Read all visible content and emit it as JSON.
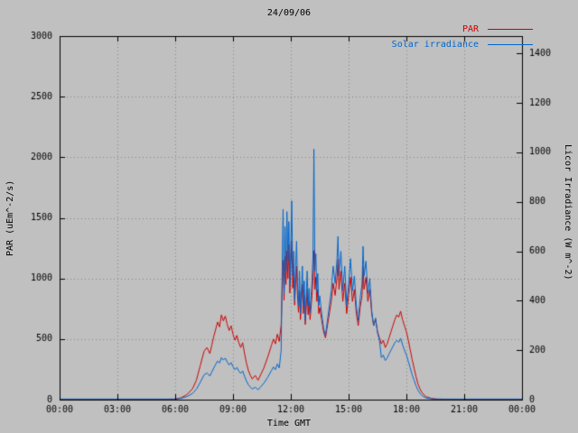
{
  "chart_data": {
    "type": "line",
    "title": "24/09/06",
    "xlabel": "Time GMT",
    "ylabel_left": "PAR (uEm^-2/s)",
    "ylabel_right": "Licor Irradiance (W m^-2)",
    "background_color": "#c0c0c0",
    "grid": true,
    "grid_color": "#888888",
    "frame_color": "#000000",
    "text_color": "#000000",
    "legend_position": "top-right",
    "x_tick_labels": [
      "00:00",
      "03:00",
      "06:00",
      "09:00",
      "12:00",
      "15:00",
      "18:00",
      "21:00",
      "00:00"
    ],
    "x_tick_hours": [
      0,
      3,
      6,
      9,
      12,
      15,
      18,
      21,
      24
    ],
    "y_left_range": [
      0,
      3000
    ],
    "y_left_ticks": [
      0,
      500,
      1000,
      1500,
      2000,
      2500,
      3000
    ],
    "y_left_tick_labels": [
      "0",
      "500",
      "1000",
      "1500",
      "2000",
      "2500",
      "3000"
    ],
    "y_right_range": [
      0,
      1470
    ],
    "y_right_ticks": [
      0,
      200,
      400,
      600,
      800,
      1000,
      1200,
      1400
    ],
    "y_right_tick_labels": [
      "0",
      "200",
      "400",
      "600",
      "800",
      "1000",
      "1200",
      "1400"
    ],
    "time_hours": [
      0,
      0.5,
      1,
      1.5,
      2,
      2.5,
      3,
      3.5,
      4,
      4.5,
      5,
      5.5,
      6,
      6.3,
      6.6,
      6.9,
      7.1,
      7.3,
      7.5,
      7.65,
      7.8,
      7.9,
      8.0,
      8.1,
      8.2,
      8.3,
      8.4,
      8.5,
      8.6,
      8.7,
      8.8,
      8.9,
      9.0,
      9.1,
      9.2,
      9.3,
      9.4,
      9.5,
      9.6,
      9.7,
      9.8,
      9.9,
      10.0,
      10.15,
      10.3,
      10.45,
      10.6,
      10.8,
      11.0,
      11.1,
      11.2,
      11.3,
      11.4,
      11.5,
      11.55,
      11.6,
      11.65,
      11.7,
      11.75,
      11.8,
      11.85,
      11.9,
      11.95,
      12.0,
      12.05,
      12.1,
      12.15,
      12.2,
      12.25,
      12.3,
      12.35,
      12.4,
      12.45,
      12.5,
      12.55,
      12.6,
      12.65,
      12.7,
      12.75,
      12.8,
      12.85,
      12.9,
      12.95,
      13.0,
      13.05,
      13.1,
      13.15,
      13.2,
      13.25,
      13.3,
      13.35,
      13.4,
      13.45,
      13.5,
      13.6,
      13.7,
      13.8,
      13.9,
      14.0,
      14.1,
      14.2,
      14.3,
      14.4,
      14.45,
      14.5,
      14.6,
      14.7,
      14.8,
      14.9,
      15.0,
      15.1,
      15.2,
      15.3,
      15.4,
      15.5,
      15.6,
      15.7,
      15.75,
      15.8,
      15.9,
      16.0,
      16.1,
      16.2,
      16.3,
      16.4,
      16.5,
      16.6,
      16.7,
      16.8,
      16.9,
      17.0,
      17.1,
      17.2,
      17.3,
      17.4,
      17.5,
      17.6,
      17.7,
      17.8,
      17.9,
      18.0,
      18.1,
      18.2,
      18.3,
      18.4,
      18.5,
      18.6,
      18.7,
      18.8,
      19.0,
      19.3,
      19.6,
      20.0,
      21.0,
      22.0,
      23.0,
      24.0
    ],
    "series": [
      {
        "name": "PAR",
        "axis": "left",
        "color": "#cc0000",
        "values": [
          4,
          4,
          4,
          4,
          4,
          4,
          4,
          4,
          4,
          4,
          4,
          4,
          5,
          15,
          40,
          90,
          160,
          280,
          400,
          430,
          380,
          450,
          520,
          580,
          640,
          600,
          700,
          650,
          690,
          620,
          570,
          610,
          540,
          490,
          530,
          470,
          430,
          470,
          380,
          300,
          240,
          200,
          170,
          200,
          160,
          210,
          260,
          350,
          450,
          500,
          460,
          540,
          480,
          620,
          900,
          1150,
          820,
          1180,
          950,
          1230,
          1000,
          1280,
          880,
          1120,
          1310,
          920,
          1060,
          780,
          960,
          1100,
          860,
          720,
          900,
          660,
          800,
          950,
          710,
          860,
          620,
          760,
          910,
          700,
          810,
          660,
          760,
          860,
          980,
          1230,
          910,
          1010,
          810,
          910,
          710,
          760,
          660,
          560,
          510,
          610,
          710,
          810,
          960,
          860,
          1010,
          1160,
          910,
          1060,
          810,
          960,
          710,
          860,
          1010,
          810,
          910,
          710,
          610,
          760,
          860,
          1100,
          910,
          1010,
          810,
          910,
          710,
          610,
          660,
          560,
          510,
          460,
          490,
          430,
          460,
          510,
          560,
          610,
          660,
          700,
          680,
          730,
          660,
          610,
          560,
          490,
          410,
          330,
          260,
          190,
          130,
          90,
          60,
          25,
          10,
          5,
          4,
          4,
          4,
          4,
          4
        ]
      },
      {
        "name": "Solar irradiance",
        "axis": "right",
        "color": "#0066cc",
        "values": [
          2,
          2,
          2,
          2,
          2,
          2,
          2,
          2,
          2,
          2,
          2,
          2,
          2,
          5,
          12,
          25,
          42,
          70,
          100,
          108,
          95,
          112,
          128,
          142,
          156,
          148,
          170,
          160,
          168,
          152,
          140,
          150,
          133,
          121,
          130,
          116,
          106,
          116,
          94,
          75,
          60,
          50,
          43,
          50,
          40,
          53,
          66,
          90,
          118,
          132,
          121,
          144,
          128,
          200,
          520,
          770,
          430,
          700,
          520,
          760,
          560,
          720,
          460,
          620,
          804,
          500,
          600,
          400,
          540,
          640,
          470,
          380,
          520,
          350,
          440,
          540,
          380,
          480,
          320,
          420,
          520,
          380,
          450,
          350,
          420,
          480,
          580,
          1013,
          520,
          590,
          440,
          510,
          380,
          420,
          350,
          290,
          260,
          320,
          380,
          440,
          540,
          470,
          570,
          660,
          500,
          600,
          440,
          540,
          380,
          470,
          570,
          440,
          500,
          380,
          320,
          410,
          470,
          620,
          500,
          560,
          430,
          490,
          360,
          300,
          330,
          270,
          240,
          170,
          180,
          158,
          168,
          185,
          200,
          215,
          230,
          240,
          232,
          248,
          222,
          200,
          180,
          155,
          128,
          100,
          78,
          56,
          38,
          26,
          17,
          7,
          3,
          2,
          2,
          2,
          2,
          2,
          2
        ]
      }
    ]
  }
}
